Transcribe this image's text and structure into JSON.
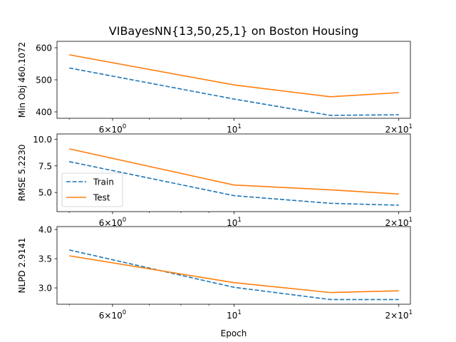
{
  "figure": {
    "title": "VIBayesNN{13,50,25,1} on Boston Housing",
    "xlabel": "Epoch"
  },
  "chart_data": [
    {
      "type": "line",
      "xscale": "log",
      "xlim": [
        4.75,
        21.0
      ],
      "ylim": [
        380,
        620
      ],
      "ylabel": "Min Obj 460.1072",
      "xticks": [
        {
          "value": 6,
          "label": "6 × 10^0"
        },
        {
          "value": 10,
          "label": "10^1"
        },
        {
          "value": 20,
          "label": "2 × 10^1"
        }
      ],
      "yticks": [
        400,
        500,
        600
      ],
      "series": [
        {
          "name": "Train",
          "color": "#1f77b4",
          "style": "dashed",
          "x": [
            5,
            10,
            15,
            20
          ],
          "y": [
            537,
            440,
            389,
            391
          ]
        },
        {
          "name": "Test",
          "color": "#ff7f0e",
          "style": "solid",
          "x": [
            5,
            10,
            15,
            20
          ],
          "y": [
            578,
            484,
            447,
            460
          ]
        }
      ]
    },
    {
      "type": "line",
      "xscale": "log",
      "xlim": [
        4.75,
        21.0
      ],
      "ylim": [
        3.2,
        10.5
      ],
      "ylabel": "RMSE 5.2230",
      "legend": "center-left",
      "xticks": [
        {
          "value": 6,
          "label": "6 × 10^0"
        },
        {
          "value": 10,
          "label": "10^1"
        },
        {
          "value": 20,
          "label": "2 × 10^1"
        }
      ],
      "yticks": [
        5.0,
        7.5,
        10.0
      ],
      "yticklabels": [
        "5.0",
        "7.5",
        "10.0"
      ],
      "series": [
        {
          "name": "Train",
          "color": "#1f77b4",
          "style": "dashed",
          "x": [
            5,
            10,
            15,
            20
          ],
          "y": [
            7.9,
            4.7,
            3.98,
            3.8
          ]
        },
        {
          "name": "Test",
          "color": "#ff7f0e",
          "style": "solid",
          "x": [
            5,
            10,
            15,
            20
          ],
          "y": [
            9.1,
            5.7,
            5.25,
            4.85
          ]
        }
      ]
    },
    {
      "type": "line",
      "xscale": "log",
      "xlim": [
        4.75,
        21.0
      ],
      "ylim": [
        2.72,
        4.05
      ],
      "ylabel": "NLPD 2.9141",
      "xticks": [
        {
          "value": 6,
          "label": "6 × 10^0"
        },
        {
          "value": 10,
          "label": "10^1"
        },
        {
          "value": 20,
          "label": "2 × 10^1"
        }
      ],
      "yticks": [
        3.0,
        3.5,
        4.0
      ],
      "yticklabels": [
        "3.0",
        "3.5",
        "4.0"
      ],
      "series": [
        {
          "name": "Train",
          "color": "#1f77b4",
          "style": "dashed",
          "x": [
            5,
            10,
            15,
            20
          ],
          "y": [
            3.65,
            3.01,
            2.8,
            2.8
          ]
        },
        {
          "name": "Test",
          "color": "#ff7f0e",
          "style": "solid",
          "x": [
            5,
            10,
            15,
            20
          ],
          "y": [
            3.55,
            3.09,
            2.92,
            2.95
          ]
        }
      ]
    }
  ]
}
